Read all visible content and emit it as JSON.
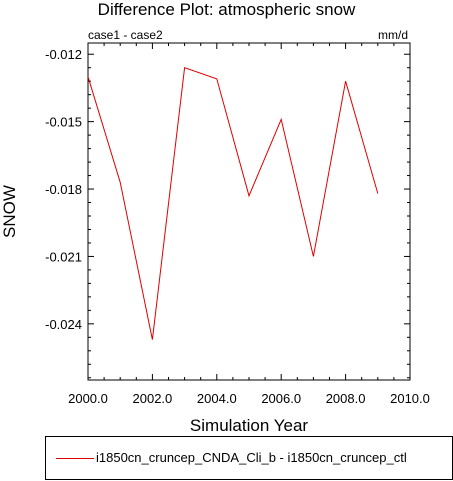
{
  "chart_data": {
    "type": "line",
    "title": "Difference Plot: atmospheric snow",
    "subtitle_left": "case1 - case2",
    "subtitle_right": "mm/d",
    "xlabel": "Simulation Year",
    "ylabel": "SNOW",
    "xlim": [
      2000.0,
      2010.0
    ],
    "ylim": [
      -0.0265,
      -0.0115
    ],
    "xticks": [
      2000.0,
      2002.0,
      2004.0,
      2006.0,
      2008.0,
      2010.0
    ],
    "xtick_labels": [
      "2000.0",
      "2002.0",
      "2004.0",
      "2006.0",
      "2008.0",
      "2010.0"
    ],
    "yticks": [
      -0.012,
      -0.015,
      -0.018,
      -0.021,
      -0.024
    ],
    "ytick_labels": [
      "-0.012",
      "-0.015",
      "-0.018",
      "-0.021",
      "-0.024"
    ],
    "grid": false,
    "legend_position": "bottom",
    "series": [
      {
        "name": "i1850cn_cruncep_CNDA_Cli_b - i1850cn_cruncep_ctl",
        "color": "#e00000",
        "x": [
          2000,
          2001,
          2002,
          2003,
          2004,
          2005,
          2006,
          2007,
          2008,
          2009
        ],
        "y": [
          -0.013,
          -0.0177,
          -0.0247,
          -0.0126,
          -0.0131,
          -0.0183,
          -0.0149,
          -0.021,
          -0.0132,
          -0.0182
        ]
      }
    ]
  }
}
